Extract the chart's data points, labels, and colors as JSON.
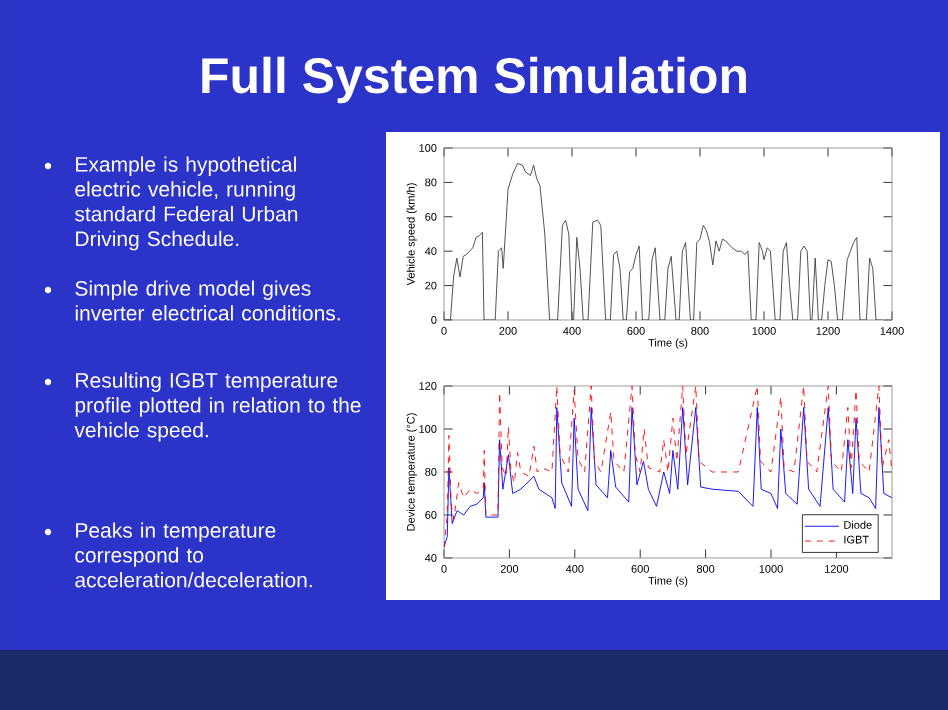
{
  "chart_data": [
    {
      "type": "other",
      "title": "Full System Simulation",
      "annotations": [
        "Example is hypothetical electric vehicle, running standard Federal Urban Driving Schedule.",
        "Simple drive model gives inverter electrical conditions.",
        "Resulting IGBT temperature profile plotted in relation to the vehicle speed.",
        "Peaks in temperature correspond to acceleration/deceleration."
      ]
    },
    {
      "type": "line",
      "xlabel": "Time (s)",
      "ylabel": "Vehicle speed (km/h)",
      "xlim": [
        0,
        1400
      ],
      "xticks": [
        0,
        200,
        400,
        600,
        800,
        1000,
        1200,
        1400
      ],
      "ylim": [
        0,
        100
      ],
      "yticks": [
        0,
        20,
        40,
        60,
        80,
        100
      ],
      "series": [
        {
          "color": "#404040",
          "x": [
            0,
            20,
            30,
            40,
            50,
            60,
            70,
            80,
            90,
            100,
            110,
            120,
            125,
            160,
            170,
            180,
            185,
            195,
            200,
            215,
            230,
            245,
            255,
            270,
            280,
            290,
            300,
            315,
            330,
            355,
            370,
            380,
            390,
            400,
            405,
            415,
            425,
            435,
            450,
            465,
            480,
            490,
            505,
            520,
            530,
            540,
            550,
            560,
            570,
            580,
            590,
            600,
            610,
            620,
            640,
            650,
            660,
            675,
            690,
            700,
            710,
            725,
            735,
            745,
            755,
            770,
            780,
            790,
            800,
            810,
            820,
            830,
            840,
            850,
            860,
            870,
            880,
            900,
            915,
            930,
            940,
            950,
            960,
            975,
            985,
            995,
            1000,
            1010,
            1020,
            1035,
            1050,
            1060,
            1070,
            1080,
            1090,
            1105,
            1115,
            1125,
            1135,
            1145,
            1150,
            1160,
            1170,
            1180,
            1190,
            1200,
            1210,
            1220,
            1230,
            1245,
            1260,
            1270,
            1280,
            1290,
            1300,
            1320,
            1330,
            1340,
            1350,
            1370
          ],
          "values": [
            0,
            0,
            25,
            36,
            25,
            37,
            38,
            40,
            42,
            48,
            49,
            51,
            0,
            0,
            40,
            42,
            30,
            60,
            76,
            85,
            91,
            90,
            86,
            84,
            90,
            82,
            78,
            50,
            0,
            0,
            55,
            58,
            50,
            0,
            0,
            48,
            30,
            0,
            0,
            57,
            58,
            55,
            0,
            0,
            38,
            40,
            30,
            0,
            0,
            28,
            30,
            38,
            43,
            0,
            0,
            35,
            42,
            0,
            0,
            30,
            37,
            0,
            0,
            40,
            45,
            0,
            0,
            45,
            47,
            55,
            52,
            45,
            32,
            46,
            40,
            47,
            46,
            42,
            40,
            40,
            38,
            40,
            0,
            0,
            45,
            40,
            35,
            42,
            40,
            0,
            0,
            40,
            45,
            20,
            0,
            0,
            40,
            43,
            40,
            0,
            0,
            36,
            0,
            0,
            20,
            35,
            34,
            20,
            0,
            0,
            35,
            40,
            45,
            48,
            0,
            0,
            36,
            30,
            0,
            0
          ]
        }
      ]
    },
    {
      "type": "line",
      "xlabel": "Time (s)",
      "ylabel": "Device temperature (°C)",
      "xlim": [
        0,
        1370
      ],
      "xticks": [
        0,
        200,
        400,
        600,
        800,
        1000,
        1200
      ],
      "ylim": [
        40,
        120
      ],
      "yticks": [
        40,
        60,
        80,
        100,
        120
      ],
      "legend": "bottom right",
      "series": [
        {
          "name": "Diode",
          "color": "#0000ff",
          "line_style": "solid",
          "x": [
            0,
            10,
            15,
            25,
            40,
            60,
            80,
            100,
            120,
            123,
            128,
            165,
            170,
            180,
            197,
            210,
            235,
            275,
            290,
            330,
            340,
            345,
            360,
            390,
            398,
            410,
            440,
            450,
            465,
            500,
            510,
            525,
            565,
            575,
            590,
            610,
            625,
            650,
            672,
            690,
            700,
            715,
            730,
            745,
            770,
            785,
            820,
            900,
            945,
            958,
            970,
            1000,
            1020,
            1030,
            1045,
            1080,
            1100,
            1115,
            1150,
            1175,
            1190,
            1225,
            1235,
            1250,
            1260,
            1275,
            1300,
            1320,
            1330,
            1345,
            1370
          ],
          "values": [
            45,
            50,
            82,
            56,
            62,
            60,
            64,
            65,
            68,
            75,
            59,
            59,
            95,
            72,
            88,
            70,
            72,
            78,
            72,
            68,
            63,
            110,
            75,
            64,
            105,
            72,
            62,
            110,
            74,
            68,
            90,
            73,
            66,
            110,
            74,
            85,
            72,
            64,
            80,
            70,
            90,
            72,
            110,
            74,
            110,
            73,
            72,
            71,
            64,
            110,
            72,
            70,
            63,
            100,
            70,
            65,
            110,
            72,
            64,
            110,
            72,
            66,
            95,
            70,
            105,
            70,
            68,
            63,
            110,
            70,
            68
          ]
        },
        {
          "name": "IGBT",
          "color": "#ff0000",
          "line_style": "dashed",
          "x": [
            0,
            10,
            15,
            22,
            30,
            45,
            60,
            80,
            100,
            120,
            123,
            128,
            165,
            170,
            178,
            190,
            197,
            205,
            215,
            225,
            235,
            260,
            275,
            285,
            300,
            330,
            345,
            355,
            380,
            398,
            410,
            430,
            450,
            460,
            480,
            510,
            520,
            550,
            575,
            585,
            600,
            612,
            625,
            660,
            672,
            685,
            700,
            712,
            730,
            740,
            770,
            780,
            820,
            900,
            958,
            968,
            1000,
            1030,
            1040,
            1070,
            1100,
            1110,
            1140,
            1175,
            1185,
            1215,
            1235,
            1245,
            1260,
            1270,
            1300,
            1330,
            1340,
            1360,
            1370
          ],
          "values": [
            45,
            60,
            97,
            65,
            58,
            75,
            68,
            72,
            70,
            72,
            90,
            60,
            60,
            117,
            82,
            78,
            101,
            80,
            75,
            89,
            80,
            78,
            92,
            80,
            82,
            80,
            120,
            88,
            80,
            118,
            86,
            80,
            120,
            85,
            80,
            108,
            85,
            80,
            120,
            88,
            80,
            100,
            82,
            80,
            95,
            80,
            105,
            85,
            120,
            88,
            120,
            85,
            80,
            80,
            120,
            85,
            80,
            115,
            82,
            80,
            120,
            85,
            80,
            120,
            85,
            80,
            110,
            82,
            118,
            85,
            80,
            120,
            82,
            95,
            80
          ]
        }
      ]
    }
  ]
}
